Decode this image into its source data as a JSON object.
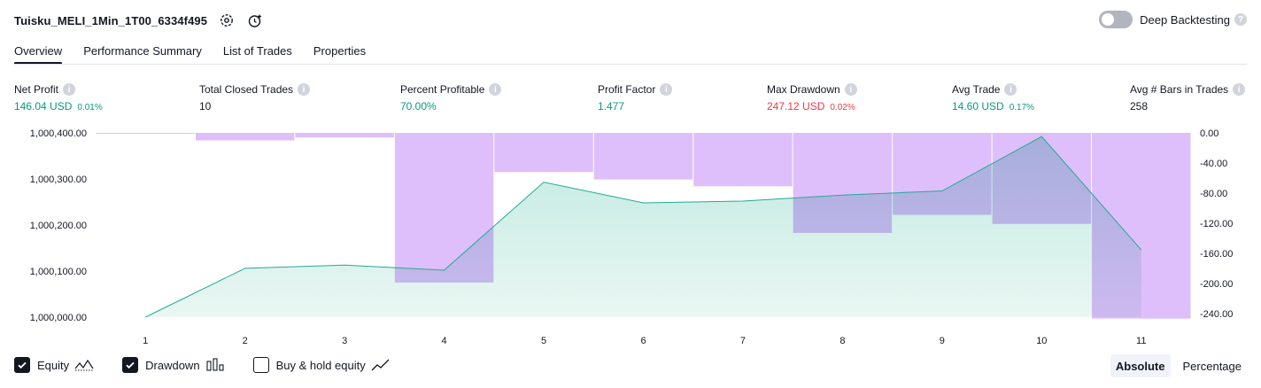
{
  "header": {
    "strategy_name": "Tuisku_MELI_1Min_1T00_6334f495",
    "deep_backtesting_label": "Deep Backtesting"
  },
  "tabs": [
    {
      "label": "Overview",
      "active": true
    },
    {
      "label": "Performance Summary",
      "active": false
    },
    {
      "label": "List of Trades",
      "active": false
    },
    {
      "label": "Properties",
      "active": false
    }
  ],
  "metrics": {
    "net_profit": {
      "label": "Net Profit",
      "value": "146.04 USD",
      "pct": "0.01%"
    },
    "total_closed_trades": {
      "label": "Total Closed Trades",
      "value": "10"
    },
    "percent_profitable": {
      "label": "Percent Profitable",
      "value": "70.00%"
    },
    "profit_factor": {
      "label": "Profit Factor",
      "value": "1.477"
    },
    "max_drawdown": {
      "label": "Max Drawdown",
      "value": "247.12 USD",
      "pct": "0.02%"
    },
    "avg_trade": {
      "label": "Avg Trade",
      "value": "14.60 USD",
      "pct": "0.17%"
    },
    "avg_bars": {
      "label": "Avg # Bars in Trades",
      "value": "258"
    }
  },
  "chart_data": {
    "type": "area",
    "x": [
      1,
      2,
      3,
      4,
      5,
      6,
      7,
      8,
      9,
      10,
      11
    ],
    "x_tick_labels": [
      "1",
      "2",
      "3",
      "4",
      "5",
      "6",
      "7",
      "8",
      "9",
      "10",
      "11"
    ],
    "left_axis": {
      "ticks": [
        "1,000,400.00",
        "1,000,300.00",
        "1,000,200.00",
        "1,000,100.00",
        "1,000,000.00"
      ],
      "ylim": [
        1000000,
        1000400
      ]
    },
    "right_axis": {
      "ticks": [
        "0.00",
        "-40.00",
        "-80.00",
        "-120.00",
        "-160.00",
        "-200.00",
        "-240.00"
      ],
      "ylim": [
        -245,
        0
      ]
    },
    "series": [
      {
        "name": "Equity",
        "axis": "left",
        "values": [
          1000000,
          1000106,
          1000113,
          1000102,
          1000293,
          1000248,
          1000252,
          1000265,
          1000274,
          1000392,
          1000146
        ]
      },
      {
        "name": "Drawdown",
        "axis": "right",
        "type": "bar",
        "values": [
          -1,
          -10,
          -6,
          -199,
          -52,
          -62,
          -71,
          -133,
          -109,
          -121,
          -247
        ]
      }
    ],
    "colors": {
      "equity_line": "#22ab94",
      "equity_fill_top": "#bfe9e0",
      "equity_fill_bottom": "#eaf7f3",
      "drawdown_bar": "#dcb8fb",
      "overlap": "#b0b8e4"
    }
  },
  "legend": [
    {
      "label": "Equity",
      "checked": true,
      "icon": "equity-wave-icon"
    },
    {
      "label": "Drawdown",
      "checked": true,
      "icon": "drawdown-bars-icon"
    },
    {
      "label": "Buy & hold equity",
      "checked": false,
      "icon": "buy-hold-line-icon"
    }
  ],
  "mode": {
    "absolute": "Absolute",
    "percentage": "Percentage",
    "selected": "absolute"
  }
}
